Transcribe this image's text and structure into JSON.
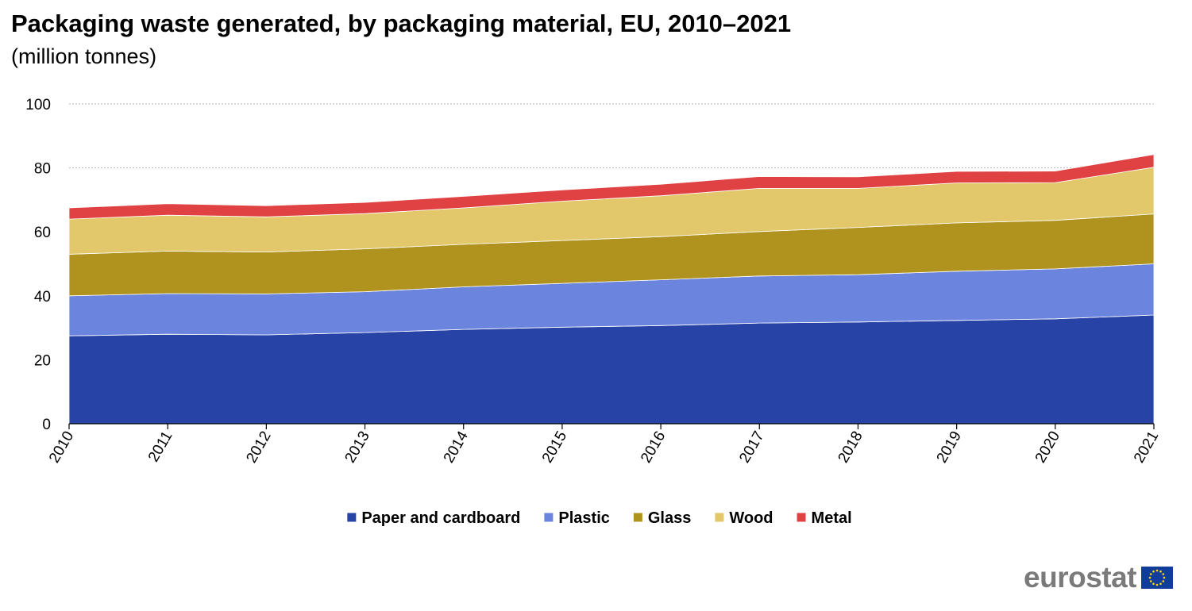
{
  "chart_data": {
    "type": "area",
    "stacked": true,
    "title": "Packaging waste generated, by packaging material, EU, 2010–2021",
    "subtitle": "(million tonnes)",
    "x": [
      "2010",
      "2011",
      "2012",
      "2013",
      "2014",
      "2015",
      "2016",
      "2017",
      "2018",
      "2019",
      "2020",
      "2021"
    ],
    "ylim": [
      0,
      100
    ],
    "yticks": [
      0,
      20,
      40,
      60,
      80,
      100
    ],
    "grid": true,
    "legend_position": "bottom",
    "series": [
      {
        "name": "Paper and cardboard",
        "color": "#2843a6",
        "values": [
          27.5,
          28.0,
          27.8,
          28.5,
          29.5,
          30.2,
          30.7,
          31.5,
          31.8,
          32.3,
          32.8,
          34.0
        ]
      },
      {
        "name": "Plastic",
        "color": "#6b84de",
        "values": [
          12.5,
          12.7,
          12.8,
          12.8,
          13.3,
          13.7,
          14.3,
          14.7,
          14.8,
          15.4,
          15.6,
          16.0
        ]
      },
      {
        "name": "Glass",
        "color": "#b0931f",
        "values": [
          13.0,
          13.3,
          13.1,
          13.4,
          13.3,
          13.4,
          13.5,
          13.9,
          14.8,
          15.1,
          15.2,
          15.6
        ]
      },
      {
        "name": "Wood",
        "color": "#e3c76b",
        "values": [
          11.0,
          11.2,
          11.0,
          11.0,
          11.4,
          12.3,
          12.8,
          13.5,
          12.2,
          12.5,
          11.8,
          14.6
        ]
      },
      {
        "name": "Metal",
        "color": "#e04142",
        "values": [
          3.5,
          3.6,
          3.5,
          3.5,
          3.6,
          3.5,
          3.6,
          3.7,
          3.6,
          3.6,
          3.6,
          4.0
        ]
      }
    ]
  },
  "logo": {
    "text": "eurostat",
    "flag_color": "#103c9b",
    "star_color": "#ffdd00"
  }
}
